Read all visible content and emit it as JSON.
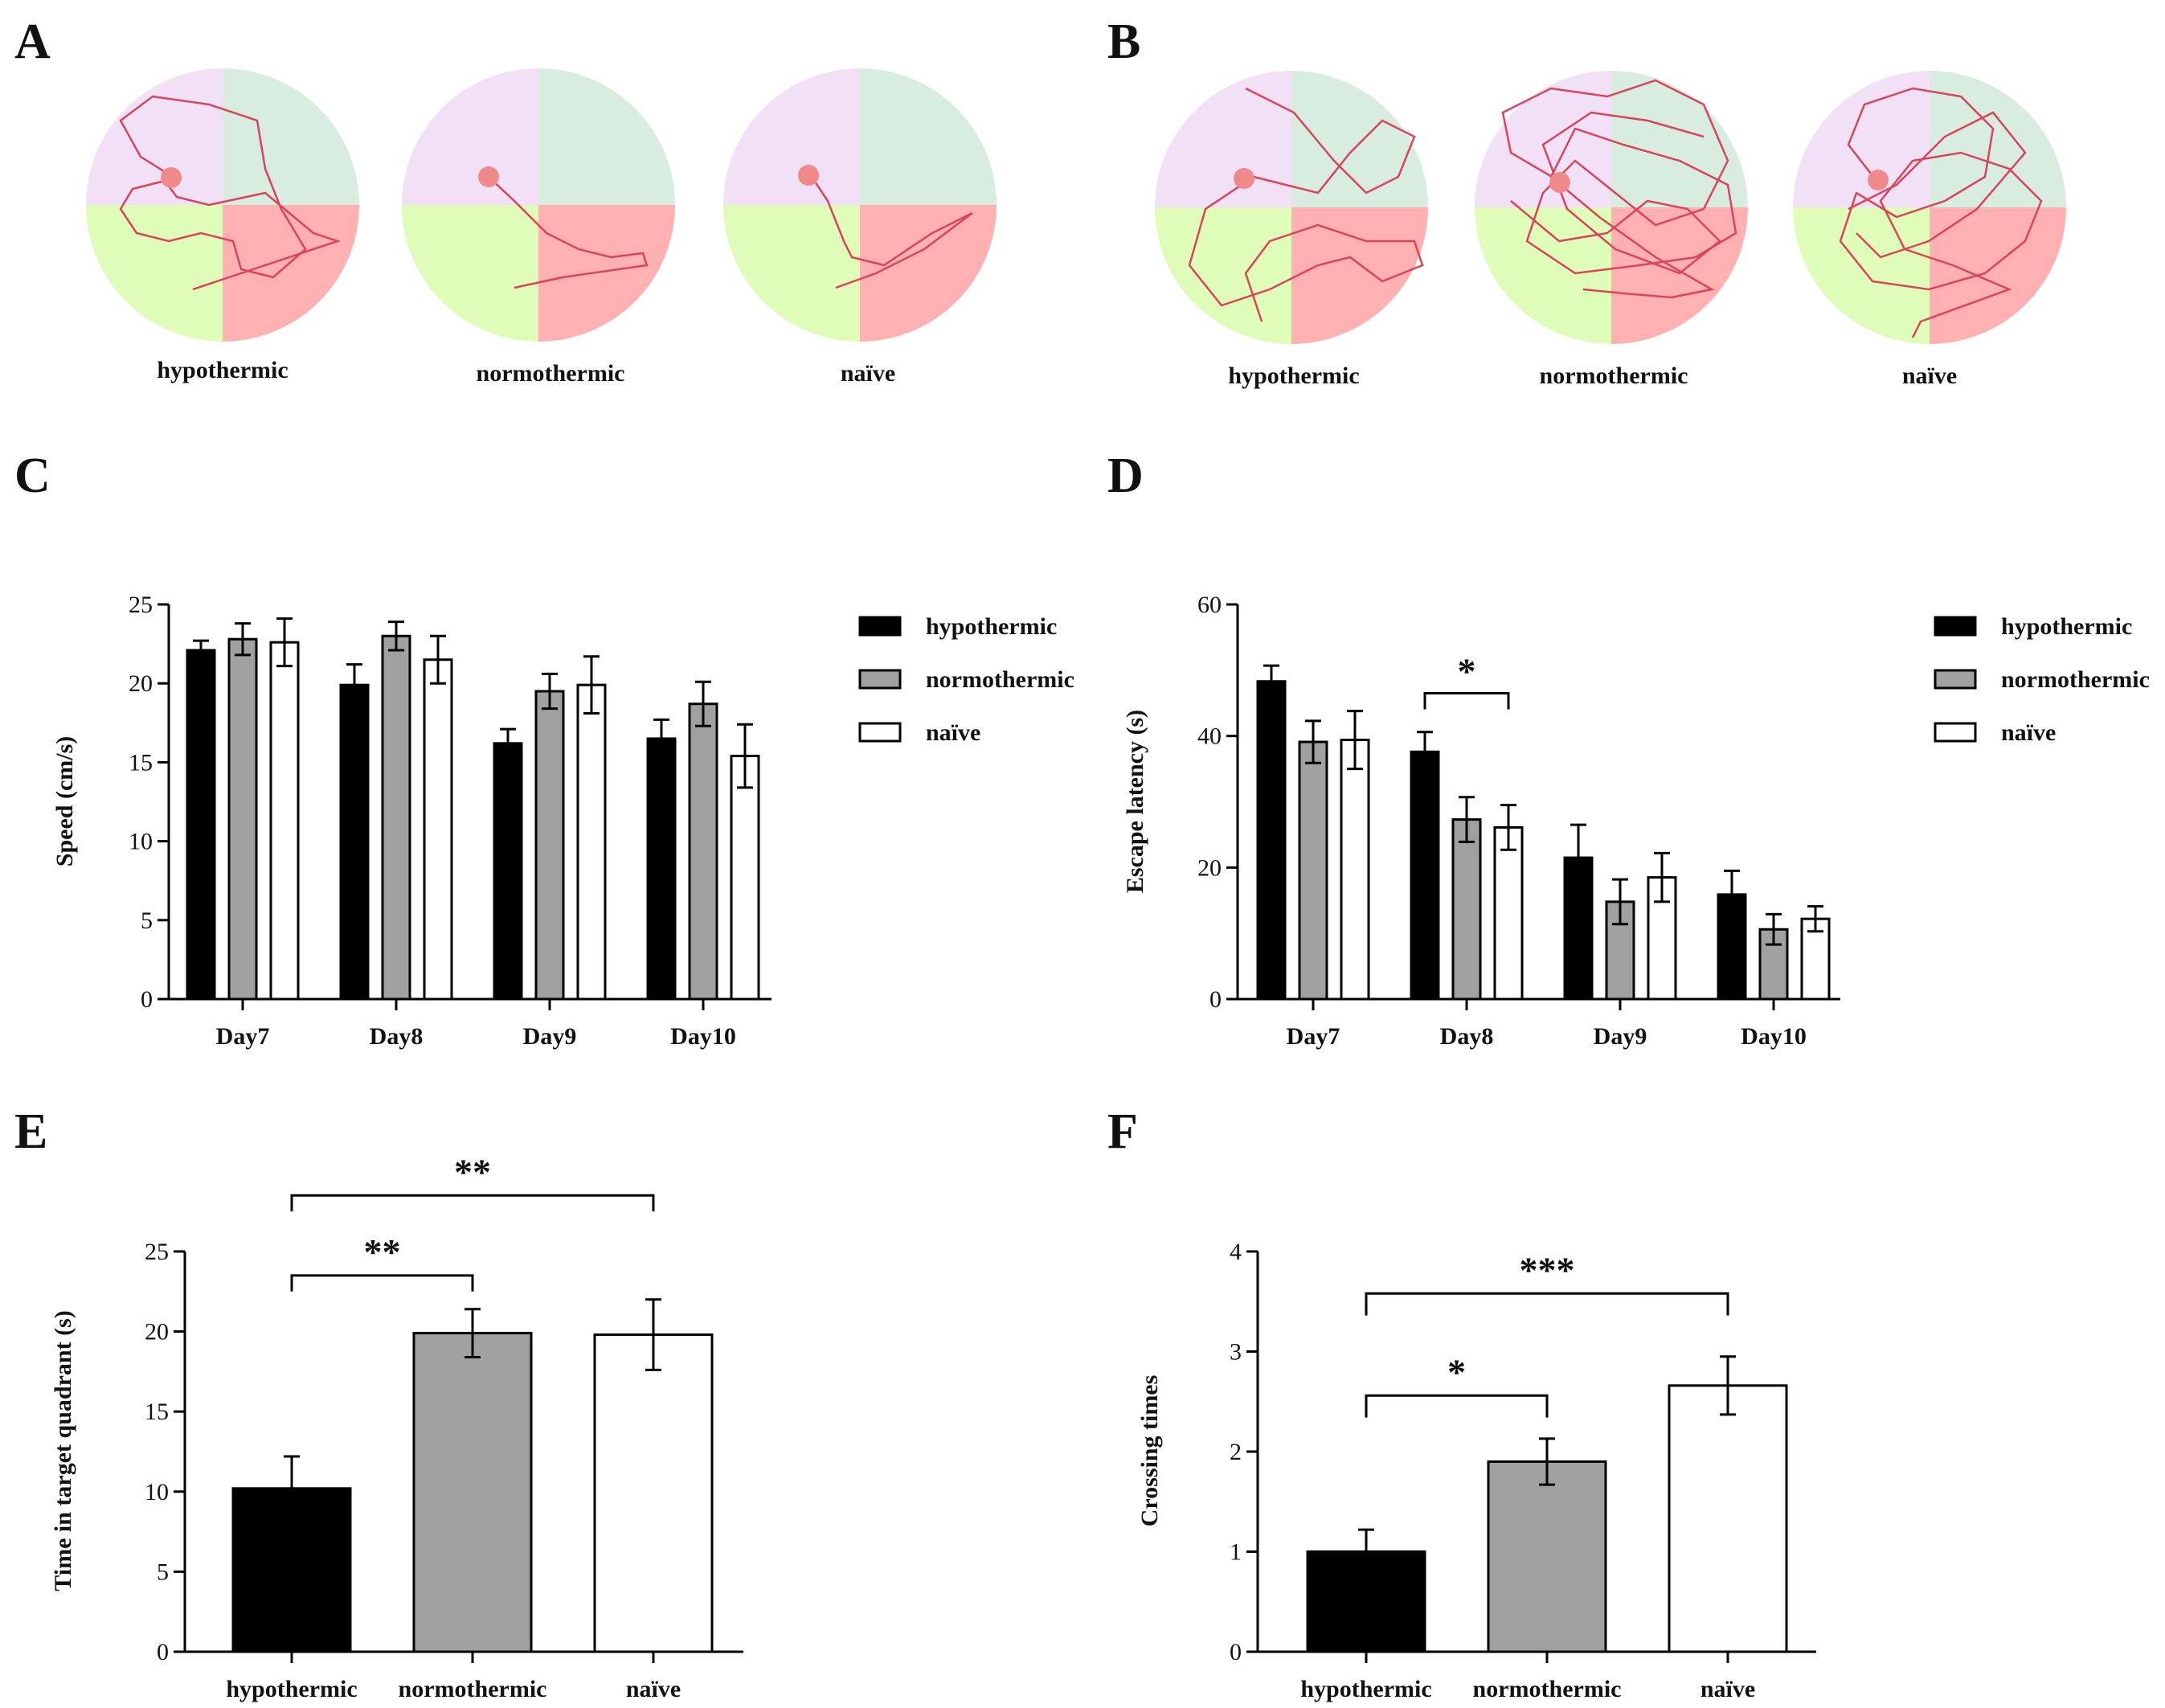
{
  "panel_labels": [
    "A",
    "B",
    "C",
    "D",
    "E",
    "F"
  ],
  "colors": {
    "hypothermic": "#000000",
    "normothermic": "#a0a0a0",
    "naive": "#ffffff",
    "quadrant_target": "#f2e0f6",
    "quadrant_upper_right": "#d8ece0",
    "quadrant_lower_left": "#dffcb8",
    "quadrant_lower_right": "#ffb0b0",
    "path": "#d9455a",
    "platform": "#f08a8a"
  },
  "maze_panels": [
    {
      "panel": "A",
      "labels": [
        "hypothermic",
        "normothermic",
        "naïve"
      ]
    },
    {
      "panel": "B",
      "labels": [
        "hypothermic",
        "normothermic",
        "naïve"
      ]
    }
  ],
  "chart_data": [
    {
      "panel": "C",
      "type": "bar",
      "categories": [
        "Day7",
        "Day8",
        "Day9",
        "Day10"
      ],
      "series": [
        {
          "name": "hypothermic",
          "values": [
            22.1,
            19.9,
            16.2,
            16.5
          ],
          "errors": [
            0.6,
            1.3,
            0.9,
            1.2
          ]
        },
        {
          "name": "normothermic",
          "values": [
            22.8,
            23.0,
            19.5,
            18.7
          ],
          "errors": [
            1.0,
            0.9,
            1.1,
            1.4
          ]
        },
        {
          "name": "naïve",
          "values": [
            22.6,
            21.5,
            19.9,
            15.4
          ],
          "errors": [
            1.5,
            1.5,
            1.8,
            2.0
          ]
        }
      ],
      "ylabel": "Speed (cm/s)",
      "xlabel": "",
      "ylim": [
        0,
        25
      ],
      "yticks": [
        "0",
        "5",
        "10",
        "15",
        "20",
        "25"
      ],
      "legend": [
        "hypothermic",
        "normothermic",
        "naïve"
      ],
      "legend_position": "right",
      "annotations": []
    },
    {
      "panel": "D",
      "type": "bar",
      "categories": [
        "Day7",
        "Day8",
        "Day9",
        "Day10"
      ],
      "series": [
        {
          "name": "hypothermic",
          "values": [
            48.3,
            37.6,
            21.5,
            15.9
          ],
          "errors": [
            2.4,
            3.0,
            5.0,
            3.6
          ]
        },
        {
          "name": "normothermic",
          "values": [
            39.1,
            27.3,
            14.8,
            10.6
          ],
          "errors": [
            3.2,
            3.4,
            3.4,
            2.3
          ]
        },
        {
          "name": "naïve",
          "values": [
            39.4,
            26.1,
            18.5,
            12.2
          ],
          "errors": [
            4.4,
            3.4,
            3.7,
            1.9
          ]
        }
      ],
      "ylabel": "Escape latency (s)",
      "xlabel": "",
      "ylim": [
        0,
        60
      ],
      "yticks": [
        "0",
        "20",
        "40",
        "60"
      ],
      "legend": [
        "hypothermic",
        "normothermic",
        "naïve"
      ],
      "legend_position": "right",
      "annotations": [
        {
          "text": "*",
          "category": "Day8",
          "from_series": 0,
          "to_series": 2,
          "y": 46.5
        }
      ]
    },
    {
      "panel": "E",
      "type": "bar",
      "categories": [
        "hypothermic",
        "normothermic",
        "naïve"
      ],
      "values": [
        10.2,
        19.9,
        19.8
      ],
      "errors": [
        2.0,
        1.5,
        2.2
      ],
      "ylabel": "Time in target quadrant (s)",
      "xlabel": "",
      "ylim": [
        0,
        25
      ],
      "yticks": [
        "0",
        "5",
        "10",
        "15",
        "20",
        "25"
      ],
      "annotations": [
        {
          "text": "**",
          "from": 0,
          "to": 1,
          "y": 23.5,
          "drop": 1.0
        },
        {
          "text": "**",
          "from": 0,
          "to": 2,
          "y": 28.5,
          "drop": 1.0
        }
      ]
    },
    {
      "panel": "F",
      "type": "bar",
      "categories": [
        "hypothermic",
        "normothermic",
        "naïve"
      ],
      "values": [
        1.0,
        1.9,
        2.66
      ],
      "errors": [
        0.22,
        0.23,
        0.29
      ],
      "ylabel": "Crossing times",
      "xlabel": "",
      "ylim": [
        0,
        4
      ],
      "yticks": [
        "0",
        "1",
        "2",
        "3",
        "4"
      ],
      "annotations": [
        {
          "text": "*",
          "from": 0,
          "to": 1,
          "y": 2.56,
          "drop": 0.22
        },
        {
          "text": "***",
          "from": 0,
          "to": 2,
          "y": 3.58,
          "drop": 0.22
        }
      ]
    }
  ]
}
